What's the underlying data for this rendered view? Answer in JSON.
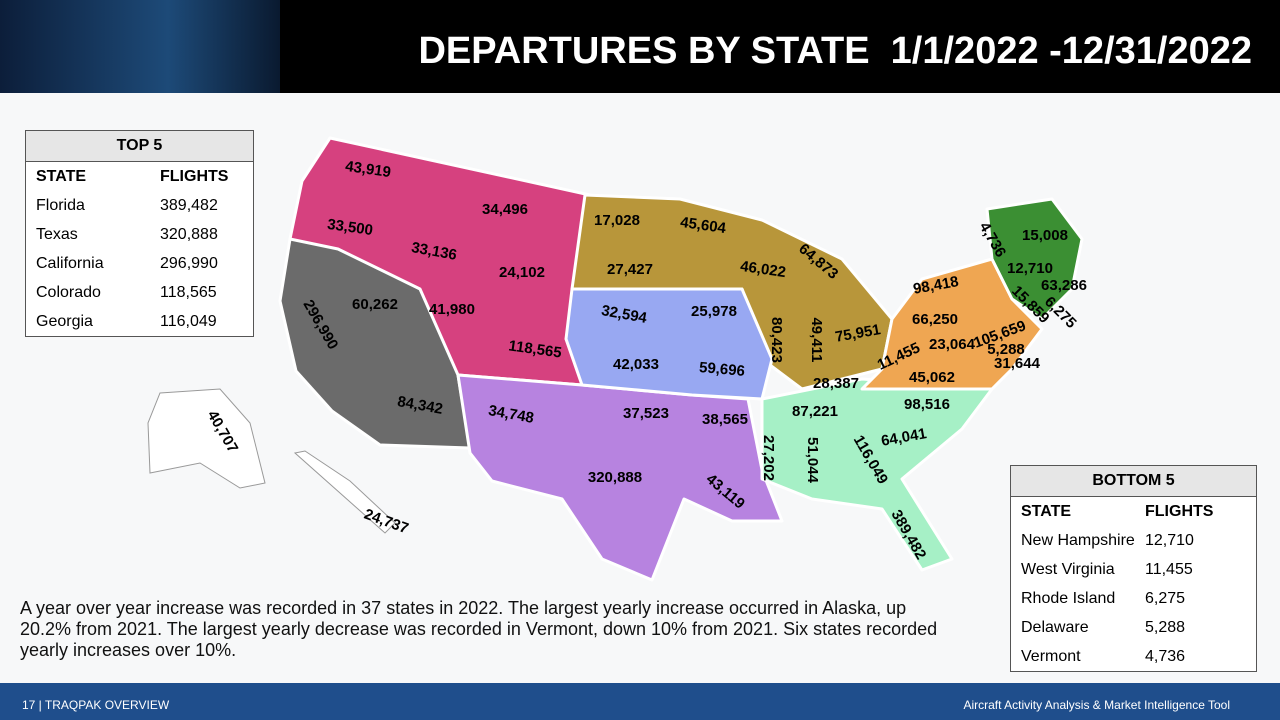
{
  "header": {
    "title": "DEPARTURES BY STATE  1/1/2022 -12/31/2022"
  },
  "top5": {
    "title": "TOP 5",
    "columns": [
      "STATE",
      "FLIGHTS"
    ],
    "rows": [
      [
        "Florida",
        "389,482"
      ],
      [
        "Texas",
        "320,888"
      ],
      [
        "California",
        "296,990"
      ],
      [
        "Colorado",
        "118,565"
      ],
      [
        "Georgia",
        "116,049"
      ]
    ]
  },
  "bottom5": {
    "title": "BOTTOM 5",
    "columns": [
      "STATE",
      "FLIGHTS"
    ],
    "rows": [
      [
        "New Hampshire",
        "12,710"
      ],
      [
        "West Virginia",
        "11,455"
      ],
      [
        "Rhode Island",
        "6,275"
      ],
      [
        "Delaware",
        "5,288"
      ],
      [
        "Vermont",
        "4,736"
      ]
    ]
  },
  "map": {
    "labels": [
      "43,919",
      "33,500",
      "34,496",
      "33,136",
      "24,102",
      "41,980",
      "118,565",
      "296,990",
      "60,262",
      "84,342",
      "17,028",
      "27,427",
      "45,604",
      "46,022",
      "64,873",
      "32,594",
      "25,978",
      "42,033",
      "59,696",
      "80,423",
      "49,411",
      "75,951",
      "34,748",
      "37,523",
      "38,565",
      "320,888",
      "43,119",
      "27,202",
      "51,044",
      "116,049",
      "389,482",
      "28,387",
      "87,221",
      "98,516",
      "64,041",
      "98,418",
      "66,250",
      "11,455",
      "23,064",
      "45,062",
      "105,659",
      "5,288",
      "31,644",
      "4,736",
      "15,008",
      "12,710",
      "63,286",
      "15,859",
      "6,275",
      "40,707",
      "24,737"
    ]
  },
  "note": "A year over year increase was recorded in 37 states in 2022. The largest yearly increase occurred in Alaska, up 20.2% from 2021. The largest yearly decrease was recorded in Vermont, down 10% from 2021. Six states recorded yearly increases over 10%.",
  "footer": {
    "left": "17  |  TRAQPAK OVERVIEW",
    "right": "Aircraft Activity Analysis & Market Intelligence Tool"
  }
}
